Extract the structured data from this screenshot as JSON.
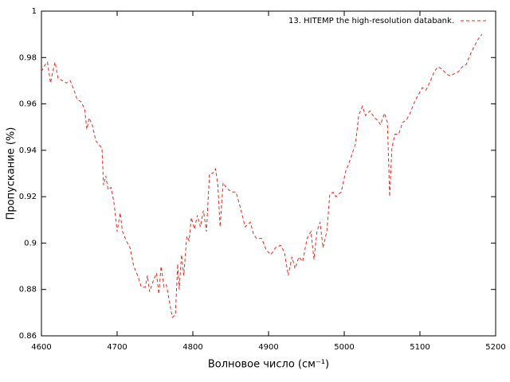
{
  "chart_data": {
    "type": "line",
    "x_label": "Волновое число (см⁻¹)",
    "y_label": "Пропускание (%)",
    "xlim": [
      4600,
      5200
    ],
    "xticks": [
      4600,
      4700,
      4800,
      4900,
      5000,
      5100,
      5200
    ],
    "ylim": [
      0.86,
      1
    ],
    "yticks": [
      0.86,
      0.88,
      0.9,
      0.92,
      0.94,
      0.96,
      0.98,
      1
    ],
    "legend": "top-right",
    "series": [
      {
        "name": "13. HITEMP the high-resolution databank.",
        "color": "#e8281e",
        "x": [
          4600,
          4605,
          4608,
          4612,
          4615,
          4618,
          4622,
          4628,
          4633,
          4638,
          4643,
          4647,
          4652,
          4657,
          4660,
          4663,
          4667,
          4672,
          4677,
          4680,
          4682,
          4685,
          4688,
          4692,
          4696,
          4700,
          4704,
          4707,
          4712,
          4717,
          4722,
          4727,
          4732,
          4737,
          4740,
          4743,
          4748,
          4752,
          4755,
          4758,
          4762,
          4765,
          4770,
          4773,
          4777,
          4780,
          4782,
          4785,
          4788,
          4792,
          4795,
          4798,
          4802,
          4806,
          4810,
          4814,
          4818,
          4822,
          4826,
          4830,
          4833,
          4836,
          4840,
          4844,
          4851,
          4857,
          4863,
          4869,
          4876,
          4880,
          4884,
          4891,
          4897,
          4903,
          4909,
          4916,
          4921,
          4926,
          4931,
          4935,
          4940,
          4945,
          4951,
          4956,
          4960,
          4964,
          4968,
          4972,
          4977,
          4981,
          4985,
          4989,
          4996,
          5002,
          5008,
          5015,
          5019,
          5024,
          5028,
          5034,
          5040,
          5044,
          5048,
          5053,
          5057,
          5060,
          5063,
          5067,
          5072,
          5077,
          5082,
          5087,
          5093,
          5098,
          5103,
          5108,
          5114,
          5119,
          5124,
          5129,
          5135,
          5140,
          5145,
          5151,
          5156,
          5161,
          5166,
          5172,
          5177,
          5182
        ],
        "values": [
          0.974,
          0.977,
          0.978,
          0.969,
          0.974,
          0.978,
          0.971,
          0.97,
          0.969,
          0.97,
          0.966,
          0.962,
          0.961,
          0.958,
          0.949,
          0.954,
          0.951,
          0.944,
          0.942,
          0.941,
          0.925,
          0.929,
          0.923,
          0.924,
          0.917,
          0.905,
          0.913,
          0.905,
          0.901,
          0.898,
          0.89,
          0.886,
          0.881,
          0.881,
          0.886,
          0.879,
          0.884,
          0.887,
          0.878,
          0.89,
          0.881,
          0.882,
          0.873,
          0.868,
          0.869,
          0.891,
          0.88,
          0.895,
          0.886,
          0.903,
          0.901,
          0.911,
          0.906,
          0.912,
          0.907,
          0.914,
          0.905,
          0.93,
          0.93,
          0.932,
          0.925,
          0.907,
          0.926,
          0.924,
          0.922,
          0.922,
          0.915,
          0.907,
          0.909,
          0.904,
          0.902,
          0.902,
          0.897,
          0.895,
          0.898,
          0.899,
          0.896,
          0.886,
          0.894,
          0.889,
          0.894,
          0.892,
          0.902,
          0.905,
          0.893,
          0.905,
          0.909,
          0.898,
          0.905,
          0.921,
          0.922,
          0.92,
          0.922,
          0.931,
          0.936,
          0.943,
          0.955,
          0.959,
          0.955,
          0.957,
          0.954,
          0.953,
          0.951,
          0.956,
          0.952,
          0.92,
          0.941,
          0.947,
          0.947,
          0.952,
          0.953,
          0.956,
          0.961,
          0.964,
          0.967,
          0.966,
          0.97,
          0.974,
          0.976,
          0.975,
          0.973,
          0.972,
          0.973,
          0.974,
          0.976,
          0.977,
          0.981,
          0.985,
          0.988,
          0.99
        ]
      }
    ]
  }
}
